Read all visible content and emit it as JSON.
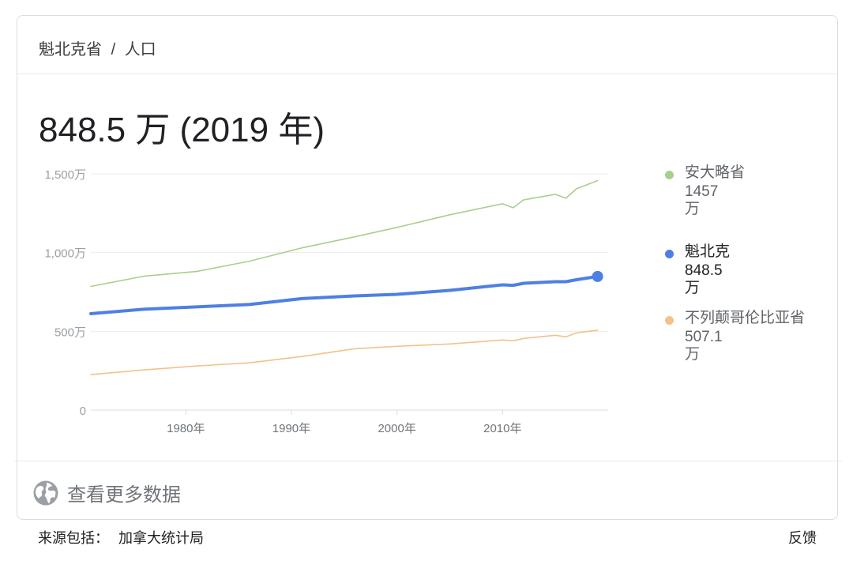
{
  "breadcrumb": {
    "region": "魁北克省",
    "separator": "/",
    "topic": "人口"
  },
  "headline": "848.5 万 (2019 年)",
  "chart_data": {
    "type": "line",
    "ylim": [
      0,
      1500
    ],
    "yticks": [
      0,
      500,
      1000,
      1500
    ],
    "ytick_labels": [
      "0",
      "500万",
      "1,000万",
      "1,500万"
    ],
    "xlim": [
      1971,
      2020
    ],
    "xticks": [
      1980,
      1990,
      2000,
      2010
    ],
    "xtick_labels": [
      "1980年",
      "1990年",
      "2000年",
      "2010年"
    ],
    "grid": true,
    "legend_position": "right",
    "series": [
      {
        "name": "安大略省",
        "value_label": "1457 万",
        "color": "#a8d08d",
        "active": false,
        "x": [
          1971,
          1976,
          1981,
          1986,
          1991,
          1996,
          2000,
          2005,
          2010,
          2011,
          2012,
          2015,
          2016,
          2017,
          2019
        ],
        "values": [
          785,
          850,
          880,
          945,
          1030,
          1100,
          1160,
          1240,
          1310,
          1285,
          1335,
          1370,
          1345,
          1405,
          1457
        ]
      },
      {
        "name": "魁北克",
        "value_label": "848.5 万",
        "color": "#4e7fe4",
        "active": true,
        "x": [
          1971,
          1976,
          1981,
          1986,
          1991,
          1996,
          2000,
          2005,
          2010,
          2011,
          2012,
          2015,
          2016,
          2017,
          2019
        ],
        "values": [
          612,
          640,
          655,
          670,
          708,
          725,
          735,
          760,
          795,
          792,
          805,
          815,
          815,
          828,
          848.5
        ]
      },
      {
        "name": "不列颠哥伦比亚省",
        "value_label": "507.1 万",
        "color": "#f2c28a",
        "active": false,
        "x": [
          1971,
          1976,
          1981,
          1986,
          1991,
          1996,
          2000,
          2005,
          2010,
          2011,
          2012,
          2015,
          2016,
          2017,
          2019
        ],
        "values": [
          225,
          255,
          280,
          300,
          340,
          390,
          405,
          420,
          445,
          440,
          455,
          475,
          465,
          490,
          507.1
        ]
      }
    ]
  },
  "more_data": {
    "label": "查看更多数据",
    "icon": "globe-icon"
  },
  "footer": {
    "source_prefix": "来源包括：",
    "source_name": "加拿大统计局",
    "feedback": "反馈"
  }
}
